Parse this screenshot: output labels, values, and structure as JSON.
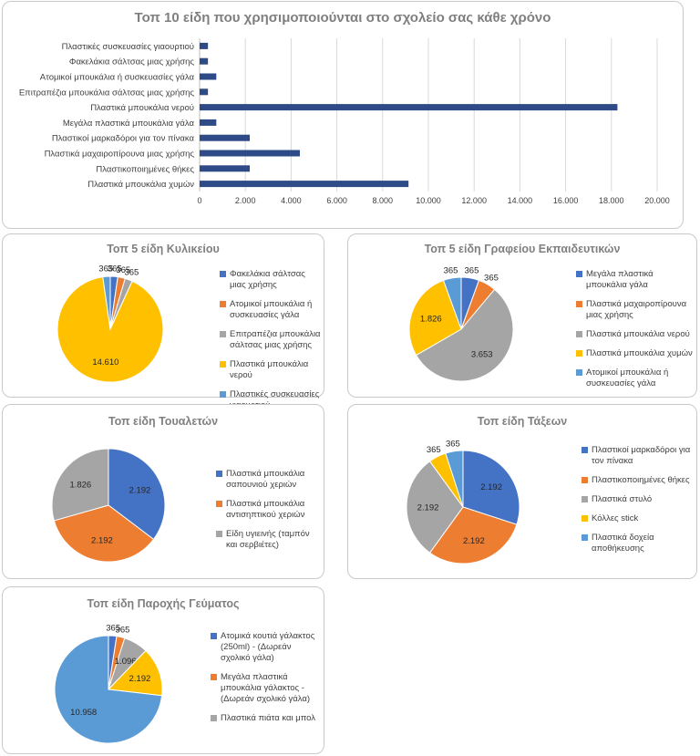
{
  "colors": {
    "bar": "#2e4a87",
    "blue": "#4472c4",
    "orange": "#ed7d31",
    "gray": "#a5a5a5",
    "yellow": "#ffc000",
    "lightblue": "#5b9bd5",
    "grid": "#d9d9d9",
    "axis_text": "#404040"
  },
  "chart_data": [
    {
      "id": "top10",
      "type": "bar",
      "orientation": "horizontal",
      "title": "Τοπ 10 είδη που χρησιμοποιούνται στο σχολείο σας κάθε χρόνο",
      "categories": [
        "Πλαστικές συσκευασίες γιαουρτιού",
        "Φακελάκια σάλτσας μιας χρήσης",
        "Ατομικοί μπουκάλια ή συσκευασίες γάλα",
        "Επιτραπέζια μπουκάλια σάλτσας μιας χρήσης",
        "Πλαστικά μπουκάλια νερού",
        "Μεγάλα πλαστικά μπουκάλια γάλα",
        "Πλαστικοί μαρκαδόροι για τον πίνακα",
        "Πλαστικά μαχαιροπίρουνα μιας χρήσης",
        "Πλαστικοποιημένες θήκες",
        "Πλαστικά μπουκάλια χυμών"
      ],
      "values": [
        365,
        365,
        730,
        365,
        18263,
        730,
        2192,
        4383,
        2192,
        9131
      ],
      "xlim": [
        0,
        20000
      ],
      "xticks": [
        "0",
        "2.000",
        "4.000",
        "6.000",
        "8.000",
        "10.000",
        "12.000",
        "14.000",
        "16.000",
        "18.000",
        "20.000"
      ],
      "xtick_values": [
        0,
        2000,
        4000,
        6000,
        8000,
        10000,
        12000,
        14000,
        16000,
        18000,
        20000
      ],
      "grid": true
    },
    {
      "id": "canteen",
      "type": "pie",
      "title": "Τοπ 5 είδη Κυλικείου",
      "slices": [
        {
          "label": "Φακελάκια σάλτσας μιας χρήσης",
          "value": 365,
          "display": "365",
          "color": "#4472c4"
        },
        {
          "label": "Ατομικοί μπουκάλια ή συσκευασίες γάλα",
          "value": 365,
          "display": "365",
          "color": "#ed7d31"
        },
        {
          "label": "Επιτραπέζια μπουκάλια σάλτσας μιας χρήσης",
          "value": 365,
          "display": "365",
          "color": "#a5a5a5"
        },
        {
          "label": "Πλαστικά μπουκάλια νερού",
          "value": 14610,
          "display": "14.610",
          "color": "#ffc000"
        },
        {
          "label": "Πλαστικές συσκευασίες γιαουρτιού",
          "value": 365,
          "display": "365",
          "color": "#5b9bd5"
        }
      ],
      "legend": "right"
    },
    {
      "id": "teacher_office",
      "type": "pie",
      "title": "Τοπ 5 είδη Γραφείου Εκπαιδευτικών",
      "slices": [
        {
          "label": "Μεγάλα πλαστικά μπουκάλια γάλα",
          "value": 365,
          "display": "365",
          "color": "#4472c4"
        },
        {
          "label": "Πλαστικά μαχαιροπίρουνα μιας χρήσης",
          "value": 365,
          "display": "365",
          "color": "#ed7d31"
        },
        {
          "label": "Πλαστικά μπουκάλια νερού",
          "value": 3653,
          "display": "3.653",
          "color": "#a5a5a5"
        },
        {
          "label": "Πλαστικά μπουκάλια χυμών",
          "value": 1826,
          "display": "1.826",
          "color": "#ffc000"
        },
        {
          "label": "Ατομικοί μπουκάλια ή συσκευασίες γάλα",
          "value": 365,
          "display": "365",
          "color": "#5b9bd5"
        }
      ],
      "legend": "right"
    },
    {
      "id": "toilets",
      "type": "pie",
      "title": "Τοπ είδη Τουαλετών",
      "slices": [
        {
          "label": "Πλαστικά μπουκάλια σαπουνιού χεριών",
          "value": 2192,
          "display": "2.192",
          "color": "#4472c4"
        },
        {
          "label": "Πλαστικά μπουκάλια αντισηπτικού χεριών",
          "value": 2192,
          "display": "2.192",
          "color": "#ed7d31"
        },
        {
          "label": "Είδη υγιεινής (ταμπόν και σερβιέτες)",
          "value": 1826,
          "display": "1.826",
          "color": "#a5a5a5"
        }
      ],
      "legend": "right"
    },
    {
      "id": "classrooms",
      "type": "pie",
      "title": "Τοπ είδη Τάξεων",
      "slices": [
        {
          "label": "Πλαστικοί μαρκαδόροι για τον πίνακα",
          "value": 2192,
          "display": "2.192",
          "color": "#4472c4"
        },
        {
          "label": "Πλαστικοποιημένες θήκες",
          "value": 2192,
          "display": "2.192",
          "color": "#ed7d31"
        },
        {
          "label": "Πλαστικά στυλό",
          "value": 2192,
          "display": "2.192",
          "color": "#a5a5a5"
        },
        {
          "label": "Κόλλες stick",
          "value": 365,
          "display": "365",
          "color": "#ffc000"
        },
        {
          "label": "Πλαστικά δοχεία αποθήκευσης",
          "value": 365,
          "display": "365",
          "color": "#5b9bd5"
        }
      ],
      "legend": "right"
    },
    {
      "id": "meals",
      "type": "pie",
      "title": "Τοπ είδη Παροχής Γεύματος",
      "slices": [
        {
          "label": "Ατομικά κουτιά γάλακτος (250ml) - (Δωρεάν σχολικό γάλα)",
          "value": 365,
          "display": "365",
          "color": "#4472c4"
        },
        {
          "label": "Μεγάλα πλαστικά μπουκάλια γάλακτος - (Δωρεάν σχολικό γάλα)",
          "value": 365,
          "display": "365",
          "color": "#ed7d31"
        },
        {
          "label": "Πλαστικά πιάτα και μπολ",
          "value": 1096,
          "display": "1.096",
          "color": "#a5a5a5"
        },
        {
          "label": "",
          "value": 2192,
          "display": "2.192",
          "color": "#ffc000"
        },
        {
          "label": "",
          "value": 10958,
          "display": "10.958",
          "color": "#5b9bd5"
        }
      ],
      "legend": "right"
    }
  ]
}
